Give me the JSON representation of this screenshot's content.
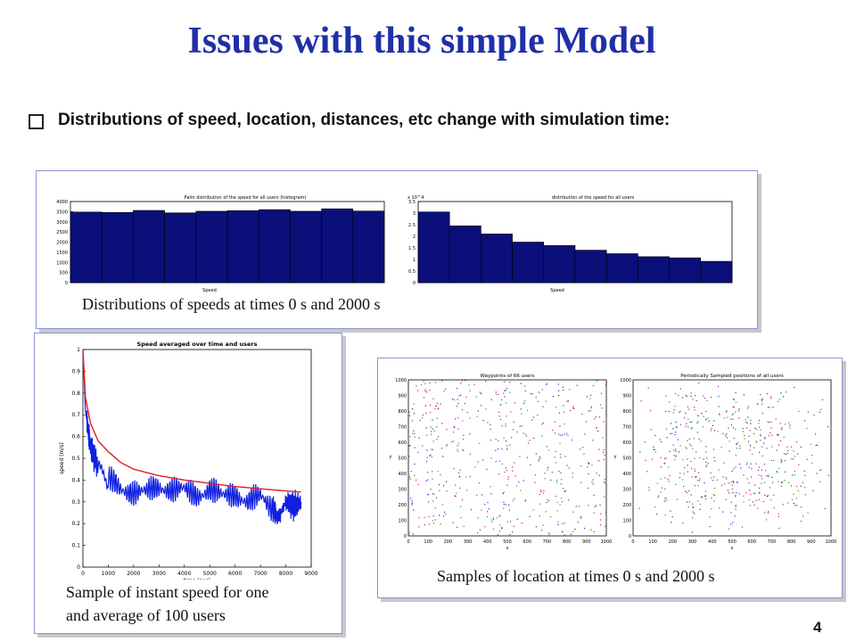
{
  "slide": {
    "title": "Issues with this simple Model",
    "bullet": "Distributions of speed, location, distances, etc change with simulation time:",
    "page_number": "4"
  },
  "captions": {
    "speed_dist": "Distributions of speeds at times 0 s and 2000 s",
    "instant_speed_line1": "Sample of instant speed for one",
    "instant_speed_line2": "and average of 100 users",
    "location": "Samples of location at times 0 s and 2000 s"
  },
  "chart_data": [
    {
      "type": "bar",
      "title": "Palm distribution of the speed for all users (histogram)",
      "xlabel": "Speed",
      "ylim": [
        0,
        4000
      ],
      "yticks": [
        "0",
        "500",
        "1000",
        "1500",
        "2000",
        "2500",
        "3000",
        "3500",
        "4000"
      ],
      "values": [
        3480,
        3460,
        3560,
        3440,
        3520,
        3550,
        3600,
        3520,
        3640,
        3530
      ],
      "color": "#0a0f7a"
    },
    {
      "type": "bar",
      "title": "distribution of the speed for all users",
      "xlabel": "Speed",
      "ylim": [
        0,
        3.5
      ],
      "yticks": [
        "0",
        "0.5",
        "1",
        "1.5",
        "2",
        "2.5",
        "3",
        "3.5"
      ],
      "y_multiplier": "x 10^4",
      "values": [
        3.05,
        2.45,
        2.1,
        1.75,
        1.6,
        1.4,
        1.25,
        1.12,
        1.07,
        0.92
      ],
      "color": "#0a0f7a"
    },
    {
      "type": "line",
      "title": "Speed averaged over time and users",
      "xlabel": "time (sec)",
      "ylabel": "speed (m/s)",
      "xlim": [
        0,
        9000
      ],
      "ylim": [
        0,
        1
      ],
      "xticks": [
        "0",
        "1000",
        "2000",
        "3000",
        "4000",
        "5000",
        "6000",
        "7000",
        "8000",
        "9000"
      ],
      "yticks": [
        "0",
        "0.1",
        "0.2",
        "0.3",
        "0.4",
        "0.5",
        "0.6",
        "0.7",
        "0.8",
        "0.9",
        "1"
      ],
      "series": [
        {
          "color": "#1020e0",
          "x": [
            0,
            100,
            300,
            600,
            1000,
            1500,
            2000,
            2500,
            3000,
            3500,
            4000,
            4500,
            5000,
            5500,
            6000,
            6500,
            7000,
            7500,
            7700,
            8000,
            8300,
            8600
          ],
          "y": [
            1.0,
            0.72,
            0.55,
            0.46,
            0.4,
            0.36,
            0.35,
            0.34,
            0.37,
            0.36,
            0.35,
            0.33,
            0.36,
            0.32,
            0.34,
            0.3,
            0.32,
            0.27,
            0.22,
            0.3,
            0.28,
            0.3
          ]
        },
        {
          "color": "#e02020",
          "x": [
            0,
            100,
            300,
            600,
            1000,
            1500,
            2000,
            3000,
            4000,
            5000,
            6000,
            7000,
            8000,
            8600
          ],
          "y": [
            1.0,
            0.78,
            0.66,
            0.58,
            0.53,
            0.48,
            0.45,
            0.42,
            0.4,
            0.385,
            0.37,
            0.36,
            0.35,
            0.345
          ]
        }
      ]
    },
    {
      "type": "scatter",
      "title": "Waypoints of 66 users",
      "xlabel": "x",
      "ylabel": "y",
      "xlim": [
        0,
        1000
      ],
      "ylim": [
        0,
        1000
      ],
      "xticks": [
        "0",
        "100",
        "200",
        "300",
        "400",
        "500",
        "600",
        "700",
        "800",
        "900",
        "1000"
      ],
      "yticks": [
        "0",
        "100",
        "200",
        "300",
        "400",
        "500",
        "600",
        "700",
        "800",
        "900",
        "1000"
      ],
      "colors": [
        "#d42020",
        "#2030d0",
        "#20a020",
        "#a020a0"
      ]
    },
    {
      "type": "scatter",
      "title": "Periodically Sampled positions of all users",
      "xlabel": "x",
      "ylabel": "y",
      "xlim": [
        0,
        1000
      ],
      "ylim": [
        0,
        1000
      ],
      "xticks": [
        "0",
        "100",
        "200",
        "300",
        "400",
        "500",
        "600",
        "700",
        "800",
        "900",
        "1000"
      ],
      "yticks": [
        "0",
        "100",
        "200",
        "300",
        "400",
        "500",
        "600",
        "700",
        "800",
        "900",
        "1000"
      ],
      "colors": [
        "#d42020",
        "#2030d0",
        "#20a020",
        "#a020a0"
      ]
    }
  ]
}
